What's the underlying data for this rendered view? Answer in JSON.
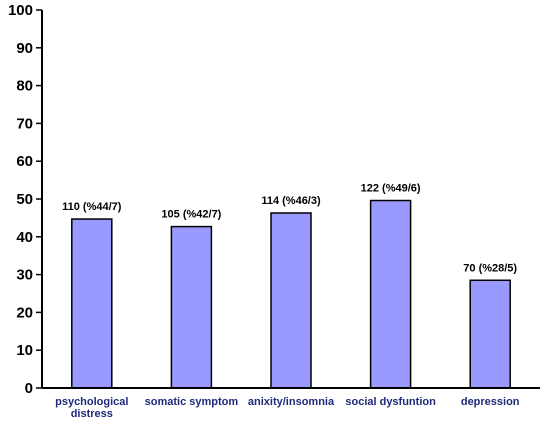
{
  "chart_data": {
    "type": "bar",
    "title": "",
    "xlabel": "",
    "ylabel": "",
    "ylim": [
      0,
      100
    ],
    "yticks": [
      0,
      10,
      20,
      30,
      40,
      50,
      60,
      70,
      80,
      90,
      100
    ],
    "grid": false,
    "legend": "none",
    "categories": [
      [
        "psychological",
        "distress"
      ],
      [
        "somatic symptom"
      ],
      [
        "anixity/insomnia"
      ],
      [
        "social dysfuntion"
      ],
      [
        "depression"
      ]
    ],
    "values": [
      44.7,
      42.7,
      46.3,
      49.6,
      28.5
    ],
    "data_labels": [
      "110 (%44/7)",
      "105 (%42/7)",
      "114 (%46/3)",
      "122 (%49/6)",
      "70 (%28/5)"
    ],
    "colors": {
      "bar_fill": "#9999ff",
      "bar_stroke": "#000000",
      "axis": "#000000",
      "category_text": "#1f2a7a"
    }
  }
}
